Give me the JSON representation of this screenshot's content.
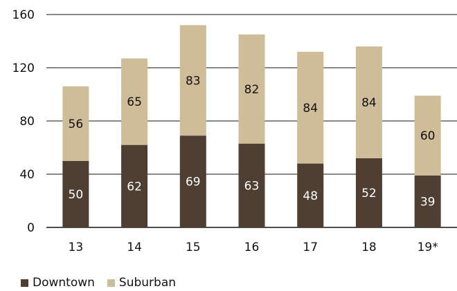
{
  "chart_data": {
    "type": "bar",
    "stacked": true,
    "categories": [
      "13",
      "14",
      "15",
      "16",
      "17",
      "18",
      "19*"
    ],
    "series": [
      {
        "name": "Downtown",
        "values": [
          50,
          62,
          69,
          63,
          48,
          52,
          39
        ],
        "color": "#4f3f33"
      },
      {
        "name": "Suburban",
        "values": [
          56,
          65,
          83,
          82,
          84,
          84,
          60
        ],
        "color": "#cfbc99"
      }
    ],
    "ylim": [
      0,
      160
    ],
    "yticks": [
      0,
      40,
      80,
      120,
      160
    ],
    "grid": true,
    "legend_position": "bottom-left",
    "title": "",
    "xlabel": "",
    "ylabel": ""
  }
}
